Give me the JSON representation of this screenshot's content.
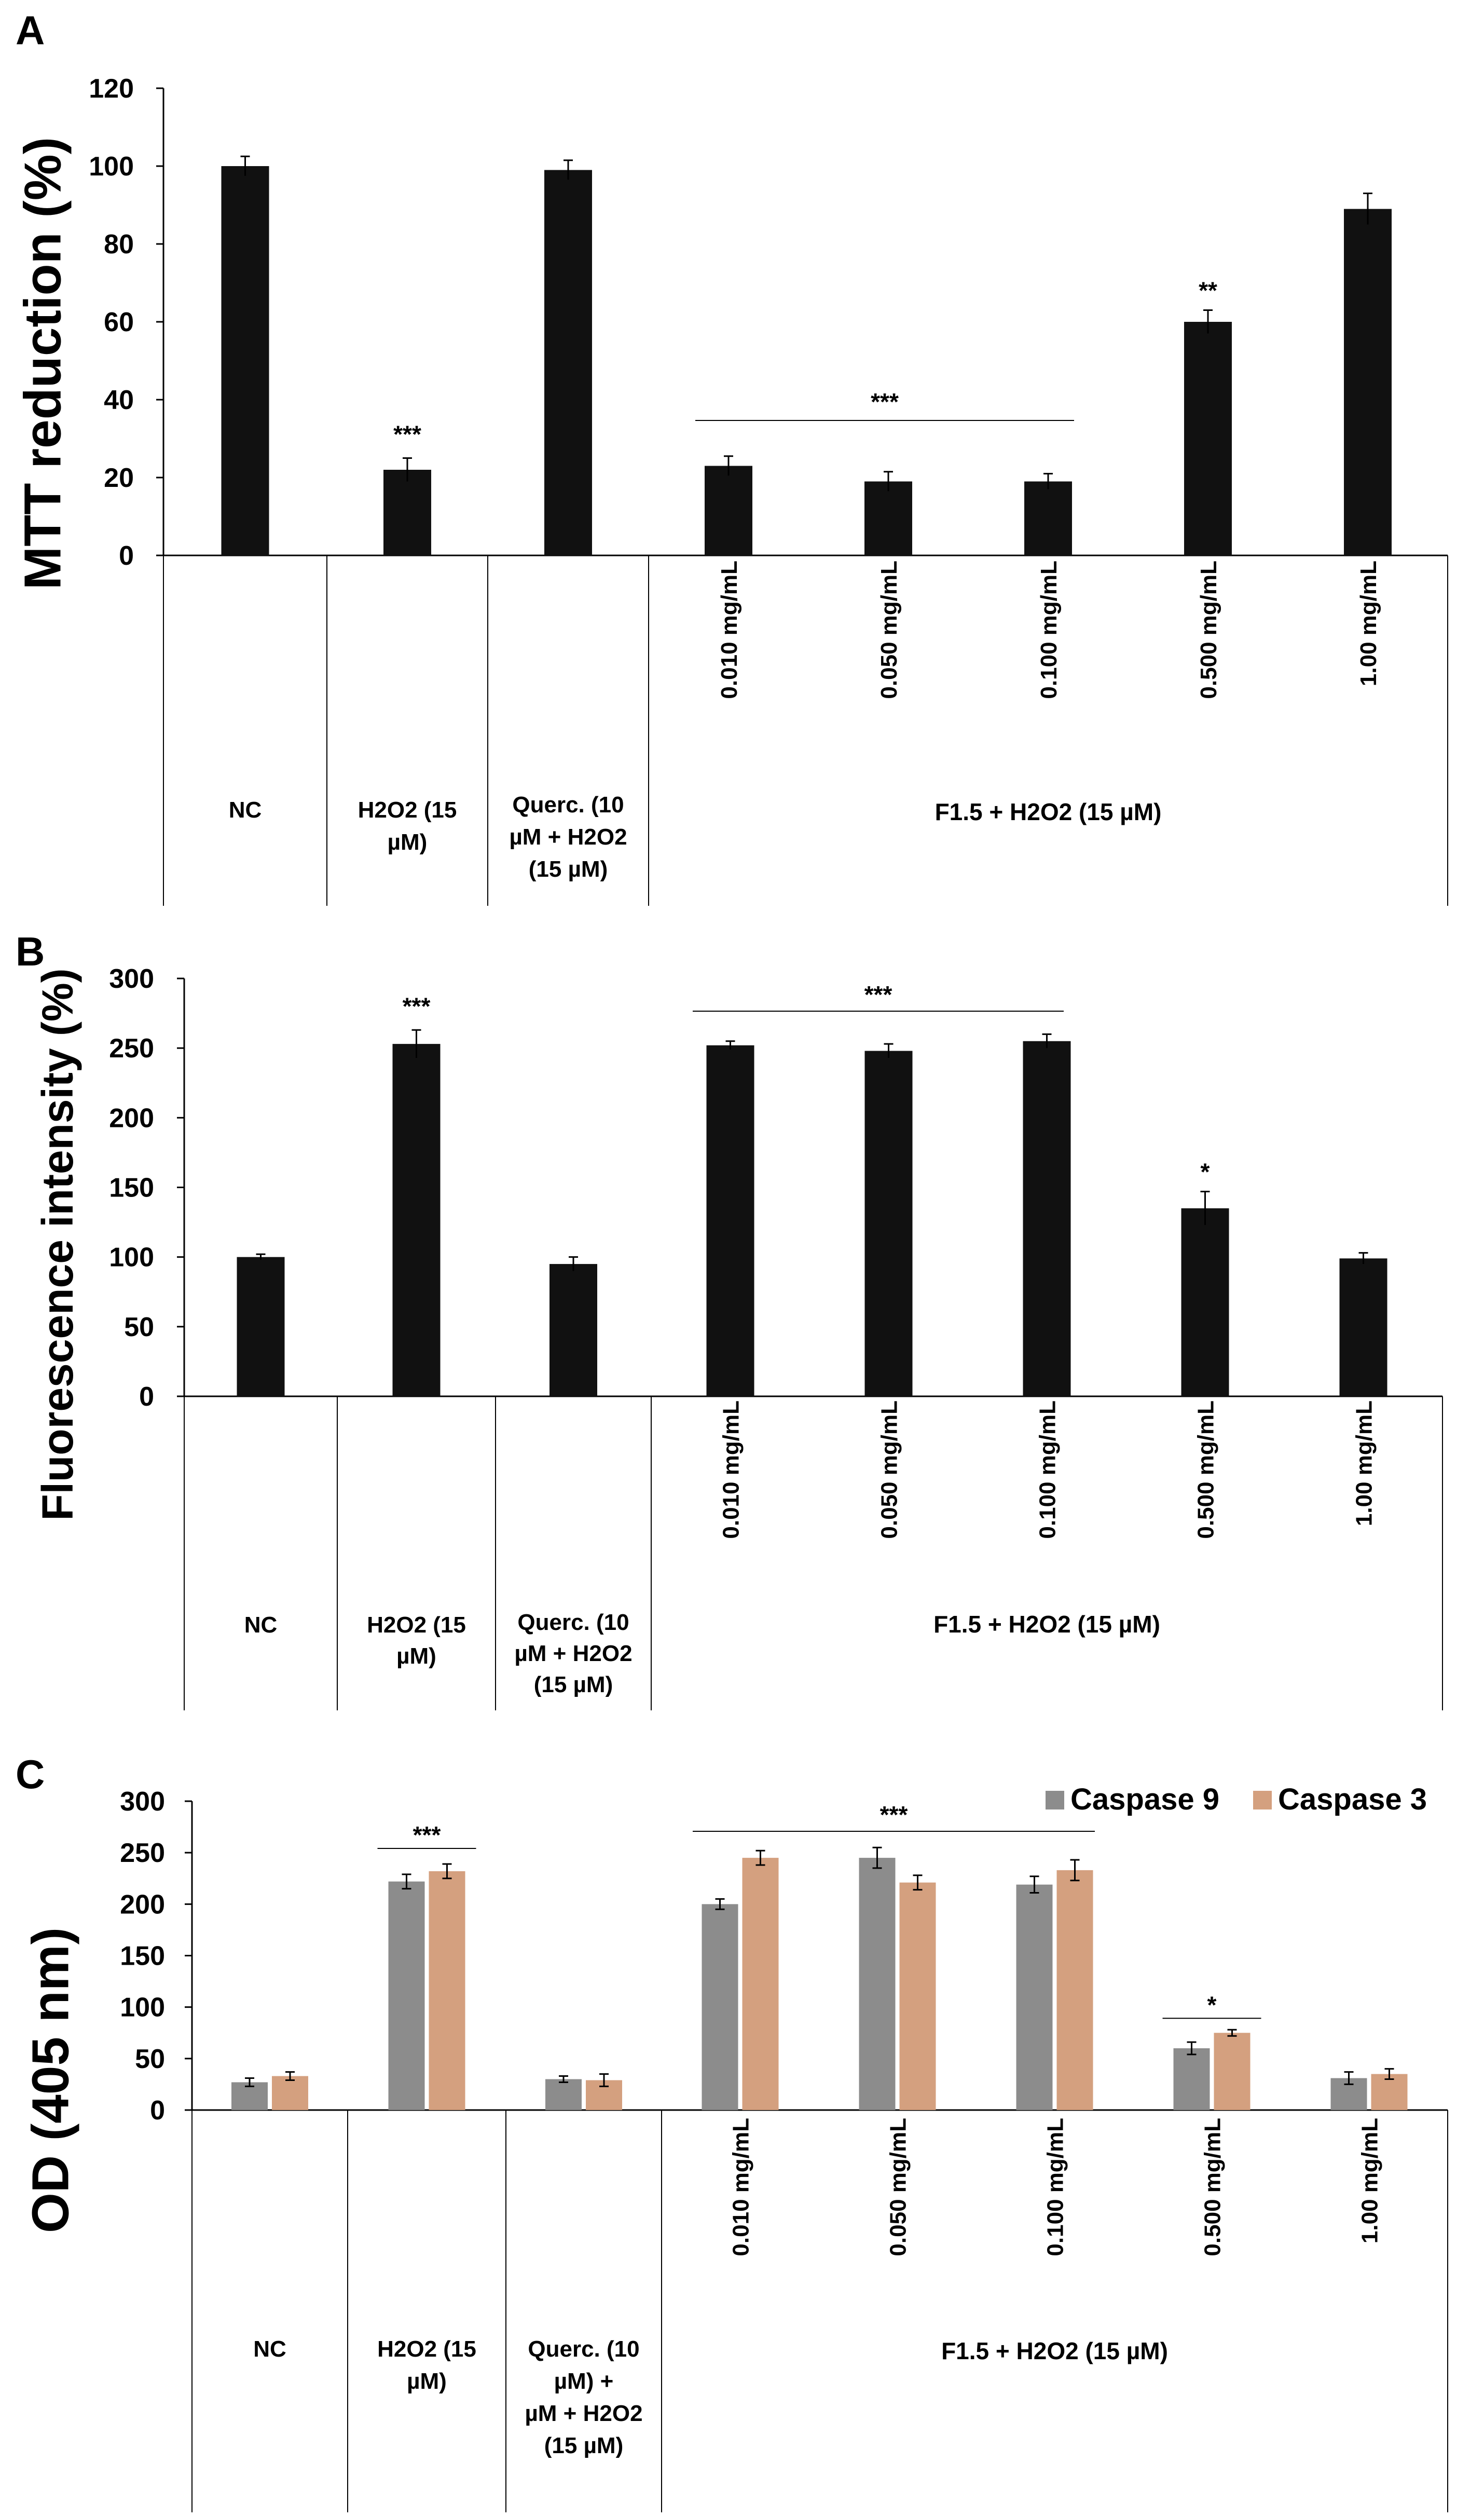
{
  "chart_data": [
    {
      "panel": "A",
      "type": "bar",
      "ylabel": "MTT reduction (%)",
      "ylim": [
        0,
        120
      ],
      "yticks": [
        0,
        20,
        40,
        60,
        80,
        100,
        120
      ],
      "categories": [
        "NC",
        "H2O2 (15 µM)",
        "Querc. (10 µM + H2O2 (15 µM)",
        "0.010 mg/mL",
        "0.050 mg/mL",
        "0.100 mg/mL",
        "0.500 mg/mL",
        "1.00 mg/mL"
      ],
      "series": [
        {
          "values": [
            100,
            22,
            99,
            23,
            19,
            19,
            60,
            89
          ],
          "errors": [
            2.5,
            3,
            2.5,
            2.5,
            2.5,
            2,
            3,
            4
          ],
          "color": "#111111"
        }
      ],
      "annotations": {
        "over_h2o2": "***",
        "over_f15_low": "***",
        "over_0500": "**"
      },
      "axis_text": {
        "nc": "NC",
        "h2o2": [
          "H2O2 (15",
          "µM)"
        ],
        "querc": [
          "Querc. (10",
          "µM + H2O2",
          "(15 µM)"
        ],
        "group": "F1.5 +  H2O2 (15 µM)"
      }
    },
    {
      "panel": "B",
      "type": "bar",
      "ylabel": "Fluorescence intensity (%)",
      "ylim": [
        0,
        300
      ],
      "yticks": [
        0,
        50,
        100,
        150,
        200,
        250,
        300
      ],
      "categories": [
        "NC",
        "H2O2 (15 µM)",
        "Querc. (10 µM + H2O2 (15 µM)",
        "0.010 mg/mL",
        "0.050 mg/mL",
        "0.100 mg/mL",
        "0.500 mg/mL",
        "1.00 mg/mL"
      ],
      "series": [
        {
          "values": [
            100,
            253,
            95,
            252,
            248,
            255,
            135,
            99
          ],
          "errors": [
            2,
            10,
            5,
            3,
            5,
            5,
            12,
            4
          ],
          "color": "#111111"
        }
      ],
      "annotations": {
        "over_h2o2": "***",
        "over_f15_low": "***",
        "over_0500": "*"
      },
      "axis_text": {
        "nc": "NC",
        "h2o2": [
          "H2O2  (15",
          "µM)"
        ],
        "querc": [
          "Querc. (10",
          "µM + H2O2",
          "(15 µM)"
        ],
        "group": "F1.5 +  H2O2 (15 µM)"
      }
    },
    {
      "panel": "C",
      "type": "bar",
      "ylabel": "OD (405 nm)",
      "ylim": [
        0,
        300
      ],
      "yticks": [
        0,
        50,
        100,
        150,
        200,
        250,
        300
      ],
      "categories": [
        "NC",
        "H2O2 (15 µM)",
        "Querc. (10 µM) + µM + H2O2 (15 µM)",
        "0.010 mg/mL",
        "0.050 mg/mL",
        "0.100 mg/mL",
        "0.500 mg/mL",
        "1.00 mg/mL"
      ],
      "series": [
        {
          "name": "Caspase 9",
          "values": [
            27,
            222,
            30,
            200,
            245,
            219,
            60,
            31
          ],
          "errors": [
            4,
            7,
            3,
            5,
            10,
            8,
            6,
            6
          ],
          "color": "#8c8c8c"
        },
        {
          "name": "Caspase 3",
          "values": [
            33,
            232,
            29,
            245,
            221,
            233,
            75,
            35
          ],
          "errors": [
            4,
            7,
            6,
            7,
            7,
            10,
            3,
            5
          ],
          "color": "#d4a07f"
        }
      ],
      "legend": "top-right",
      "annotations": {
        "over_h2o2": "***",
        "over_f15_low": "***",
        "over_0500": "*"
      },
      "axis_text": {
        "nc": "NC",
        "h2o2": [
          "H2O2 (15",
          "µM)"
        ],
        "querc": [
          "Querc. (10",
          "µM) +",
          "µM + H2O2",
          "(15 µM)"
        ],
        "group": "F1.5 +  H2O2 (15 µM)"
      }
    }
  ]
}
